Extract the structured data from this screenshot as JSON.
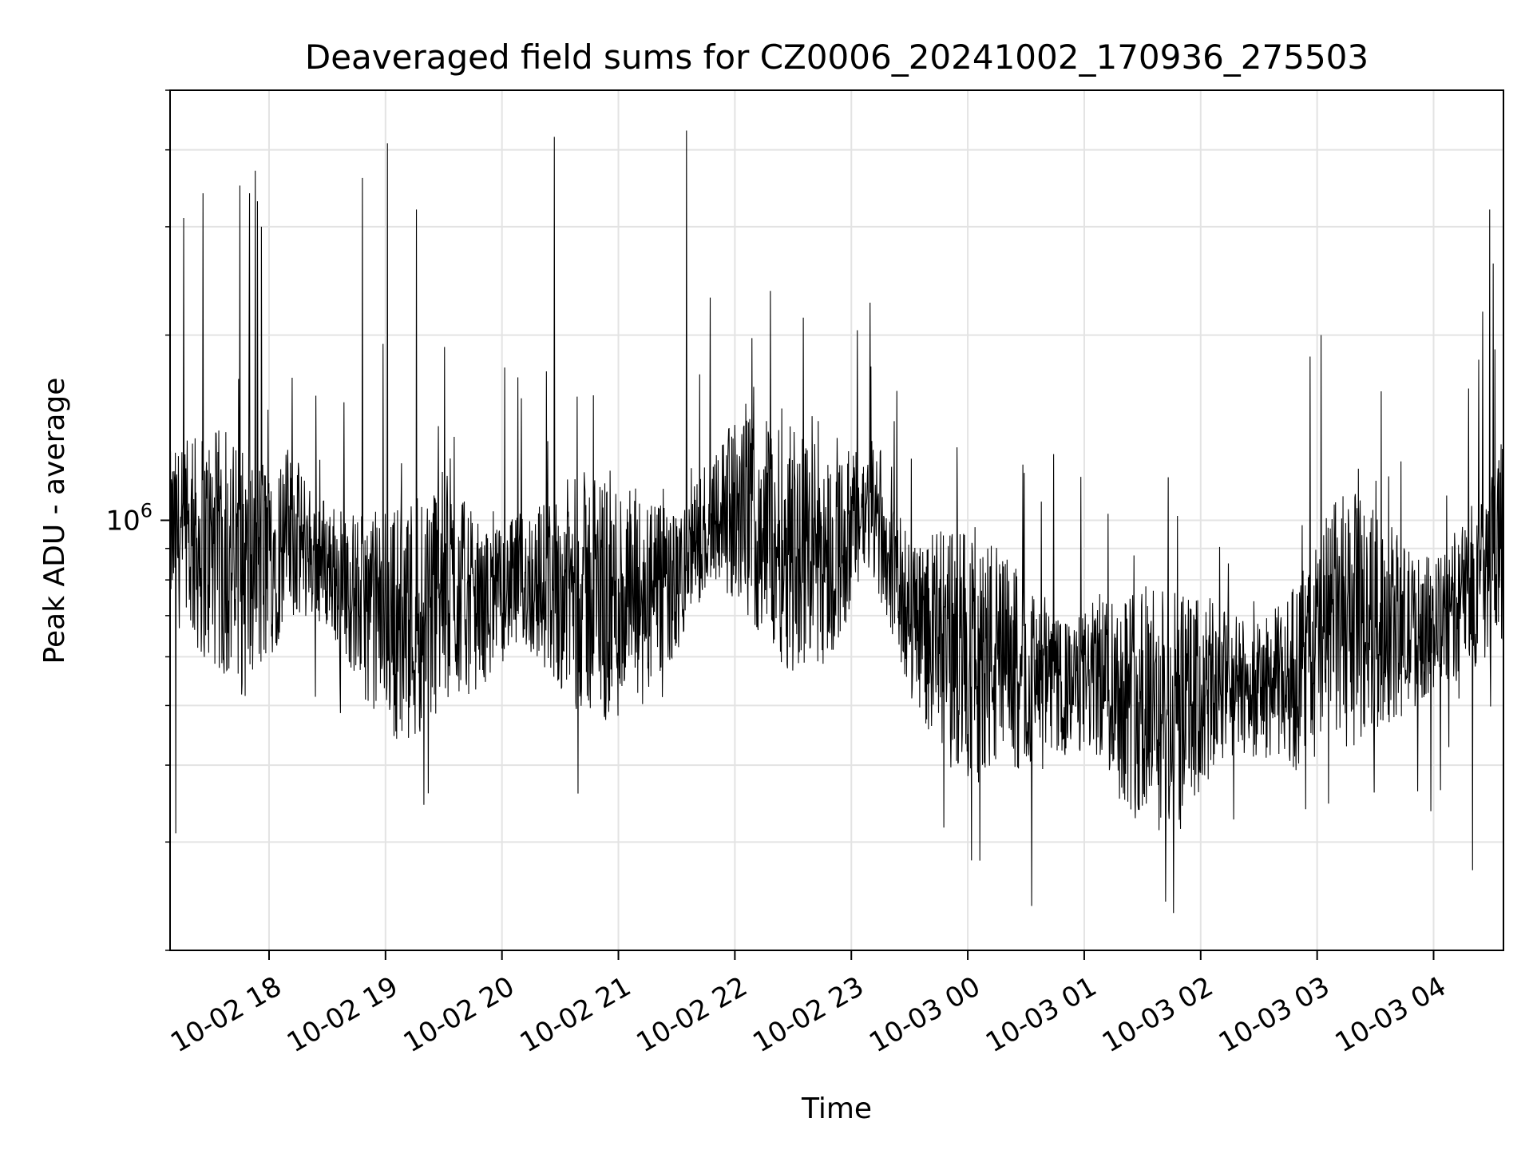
{
  "chart_data": {
    "type": "line",
    "title": "Deaveraged field sums for CZ0006_20241002_170936_275503",
    "xlabel": "Time",
    "ylabel": "Peak ADU - average",
    "yscale": "log",
    "grid": true,
    "legend": "none",
    "line_color": "#000000",
    "x_range": [
      "10-02 17:09",
      "10-03 04:36"
    ],
    "ylim": [
      200000,
      5000000
    ],
    "x_ticks": [
      "10-02 18",
      "10-02 19",
      "10-02 20",
      "10-02 21",
      "10-02 22",
      "10-02 23",
      "10-03 00",
      "10-03 01",
      "10-03 02",
      "10-03 03",
      "10-03 04"
    ],
    "y_ticks": [
      {
        "value": 1000000,
        "base": "10",
        "exp": "6"
      }
    ],
    "series": [
      {
        "x": [
          "10-02 17:09",
          "10-02 17:30",
          "10-02 17:50",
          "10-02 18:10",
          "10-02 18:30",
          "10-02 18:50",
          "10-02 19:10",
          "10-02 19:30",
          "10-02 19:50",
          "10-02 20:10",
          "10-02 20:30",
          "10-02 20:50",
          "10-02 21:10",
          "10-02 21:30",
          "10-02 21:50",
          "10-02 22:10",
          "10-02 22:30",
          "10-02 22:50",
          "10-02 23:10",
          "10-02 23:30",
          "10-02 23:50",
          "10-03 00:10",
          "10-03 00:30",
          "10-03 00:50",
          "10-03 01:10",
          "10-03 01:30",
          "10-03 01:50",
          "10-03 02:10",
          "10-03 02:30",
          "10-03 02:50",
          "10-03 03:10",
          "10-03 03:30",
          "10-03 03:50",
          "10-03 04:10",
          "10-03 04:36"
        ],
        "values": [
          950000,
          900000,
          800000,
          950000,
          850000,
          720000,
          680000,
          780000,
          720000,
          800000,
          780000,
          750000,
          740000,
          780000,
          1050000,
          1000000,
          920000,
          870000,
          1050000,
          700000,
          620000,
          600000,
          560000,
          530000,
          560000,
          500000,
          480000,
          540000,
          530000,
          560000,
          680000,
          690000,
          660000,
          700000,
          950000
        ],
        "spikes": [
          {
            "x": "10-02 17:45",
            "value": 3500000
          },
          {
            "x": "10-02 17:50",
            "value": 3400000
          },
          {
            "x": "10-02 17:53",
            "value": 3700000
          },
          {
            "x": "10-02 17:54",
            "value": 3300000
          },
          {
            "x": "10-02 17:56",
            "value": 3000000
          },
          {
            "x": "10-02 17:16",
            "value": 3100000
          },
          {
            "x": "10-02 17:26",
            "value": 3400000
          },
          {
            "x": "10-02 18:48",
            "value": 3600000
          },
          {
            "x": "10-02 19:01",
            "value": 4100000
          },
          {
            "x": "10-02 19:16",
            "value": 3200000
          },
          {
            "x": "10-02 20:27",
            "value": 4200000
          },
          {
            "x": "10-02 21:35",
            "value": 4300000
          },
          {
            "x": "10-02 23:15",
            "value": 1300000
          },
          {
            "x": "10-03 03:02",
            "value": 2000000
          },
          {
            "x": "10-03 04:29",
            "value": 3200000
          },
          {
            "x": "10-02 17:12",
            "value": 310000
          },
          {
            "x": "10-02 19:22",
            "value": 360000
          },
          {
            "x": "10-03 00:02",
            "value": 280000
          },
          {
            "x": "10-03 01:42",
            "value": 240000
          },
          {
            "x": "10-03 01:46",
            "value": 230000
          },
          {
            "x": "10-03 04:20",
            "value": 270000
          }
        ]
      }
    ]
  }
}
